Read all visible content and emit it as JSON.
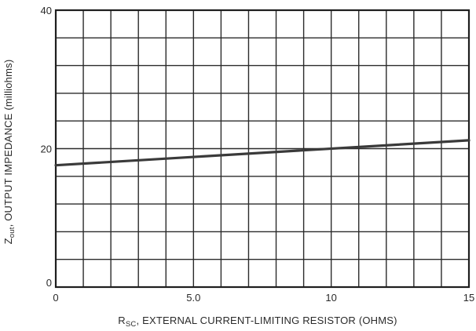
{
  "chart_data": {
    "type": "line",
    "title": "",
    "xlabel": {
      "prefix": "R",
      "subscript": "SC",
      "text": ", EXTERNAL CURRENT-LIMITING RESISTOR (OHMS)"
    },
    "ylabel": {
      "prefix": "Z",
      "subscript": "out",
      "text": ", OUTPUT IMPEDANCE (milliohms)"
    },
    "xlim": [
      0,
      15
    ],
    "ylim": [
      0,
      40
    ],
    "x_tick_labels": [
      {
        "value": 0,
        "label": "0"
      },
      {
        "value": 5,
        "label": "5.0"
      },
      {
        "value": 10,
        "label": "10"
      },
      {
        "value": 15,
        "label": "15"
      }
    ],
    "y_tick_labels": [
      {
        "value": 0,
        "label": "0"
      },
      {
        "value": 20,
        "label": "20"
      },
      {
        "value": 40,
        "label": "40"
      }
    ],
    "x_grid_step": 1,
    "y_grid_step": 4,
    "grid": true,
    "legend": "none",
    "series": [
      {
        "x": [
          0,
          15
        ],
        "y": [
          17.6,
          21.2
        ]
      }
    ]
  }
}
